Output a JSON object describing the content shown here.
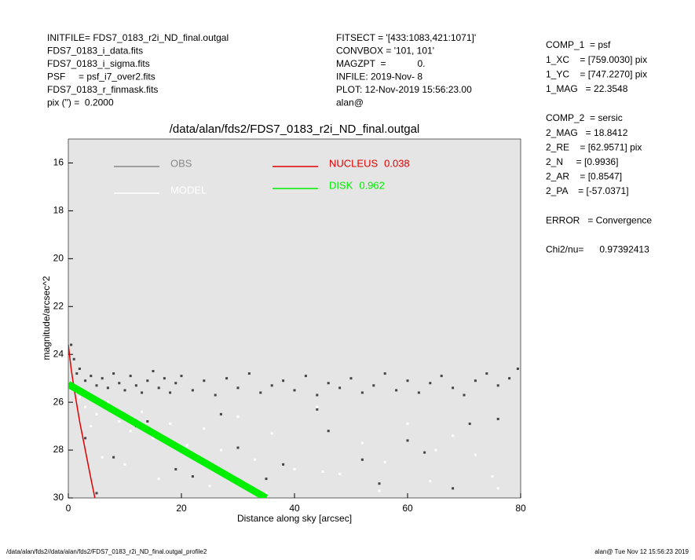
{
  "info_left": [
    "INITFILE= FDS7_0183_r2i_ND_final.outgal",
    "FDS7_0183_i_data.fits",
    "FDS7_0183_i_sigma.fits",
    "PSF     = psf_i7_over2.fits",
    "FDS7_0183_r_finmask.fits",
    "pix (\") =  0.2000"
  ],
  "info_mid": [
    "FITSECT = '[433:1083,421:1071]'",
    "CONVBOX = '101, 101'",
    "MAGZPT  =            0.",
    "INFILE: 2019-Nov- 8",
    "PLOT: 12-Nov-2019 15:56:23.00",
    "alan@"
  ],
  "info_right": [
    "COMP_1  = psf",
    "1_XC    = [759.0030] pix",
    "1_YC    = [747.2270] pix",
    "1_MAG   = 22.3548",
    "",
    "COMP_2  = sersic",
    "2_MAG   = 18.8412",
    "2_RE    = [62.9571] pix",
    "2_N     = [0.9936]",
    "2_AR    = [0.8547]",
    "2_PA    = [-57.0371]",
    "",
    "ERROR   = Convergence",
    "",
    "Chi2/nu=      0.97392413"
  ],
  "footer": {
    "left": "/data/alan/fds2//data/alan/fds2/FDS7_0183_r2i_ND_final.outgal_profile2",
    "right": "alan@  Tue Nov 12 15:56:23 2019"
  },
  "chart_data": {
    "type": "scatter",
    "title": "/data/alan/fds2/FDS7_0183_r2i_ND_final.outgal",
    "x_label": "Distance along sky [arcsec]",
    "y_label": "magnitude/arcsec^2",
    "xlim": [
      0,
      80
    ],
    "xticks": [
      0,
      20,
      40,
      60,
      80
    ],
    "ylim": [
      30,
      15
    ],
    "yticks": [
      16,
      18,
      20,
      22,
      24,
      26,
      28,
      30
    ],
    "background": "#e5e5e5",
    "series": [
      {
        "name": "OBS",
        "color": "#444444",
        "legend_color": "#888888",
        "mode": "markers",
        "x": [
          0.5,
          1,
          1.5,
          2,
          3,
          4,
          5,
          6,
          7,
          8,
          9,
          10,
          11,
          12,
          13,
          14,
          15,
          16,
          17,
          18,
          19,
          20,
          22,
          24,
          26,
          28,
          30,
          32,
          34,
          36,
          38,
          40,
          42,
          44,
          46,
          48,
          50,
          52,
          54,
          56,
          58,
          60,
          62,
          64,
          66,
          68,
          70,
          72,
          74,
          76,
          78,
          79.5,
          3,
          8,
          14,
          22,
          30,
          38,
          46,
          55,
          63,
          71,
          5,
          12,
          19,
          27,
          35,
          44,
          52,
          60,
          68,
          76
        ],
        "values": [
          23.6,
          24.2,
          24.8,
          24.6,
          25.1,
          24.9,
          25.3,
          25.0,
          25.4,
          24.8,
          25.2,
          25.5,
          24.9,
          25.3,
          25.6,
          25.1,
          24.7,
          25.4,
          25.0,
          25.6,
          25.2,
          24.9,
          25.5,
          25.1,
          25.7,
          25.0,
          25.4,
          24.8,
          25.6,
          25.3,
          25.1,
          25.5,
          24.9,
          25.7,
          25.2,
          25.4,
          25.0,
          25.6,
          25.3,
          24.8,
          25.5,
          25.1,
          25.6,
          25.2,
          24.9,
          25.4,
          25.7,
          25.1,
          24.8,
          25.3,
          25.0,
          24.6,
          27.5,
          28.3,
          26.8,
          29.1,
          27.9,
          28.6,
          27.2,
          29.4,
          28.1,
          26.9,
          29.8,
          27.0,
          28.8,
          26.5,
          29.2,
          26.3,
          28.4,
          27.6,
          29.6,
          26.7
        ]
      },
      {
        "name": "MODEL",
        "color": "#ffffff",
        "legend_color": "#ffffff",
        "mode": "markers",
        "x": [
          1,
          2,
          3,
          5,
          7,
          9,
          11,
          13,
          15,
          18,
          21,
          24,
          27,
          30,
          33,
          36,
          40,
          44,
          48,
          52,
          56,
          60,
          64,
          68,
          72,
          76,
          4,
          10,
          16,
          25,
          35,
          45,
          55,
          65,
          75,
          6
        ],
        "values": [
          25.5,
          25.8,
          26.2,
          26.5,
          26.0,
          26.8,
          27.2,
          26.4,
          27.5,
          26.9,
          27.8,
          27.1,
          28.0,
          26.6,
          28.4,
          27.3,
          28.8,
          26.2,
          29.0,
          27.7,
          28.5,
          26.9,
          29.3,
          27.4,
          28.2,
          29.6,
          27.0,
          28.6,
          29.2,
          29.5,
          29.8,
          28.9,
          29.7,
          28.0,
          29.1,
          28.3
        ]
      },
      {
        "name": "NUCLEUS",
        "fraction": "0.038",
        "color": "#e00000",
        "legend_color": "#e00000",
        "mode": "line",
        "x": [
          0,
          0.5,
          1,
          1.5,
          2,
          3,
          4,
          4.7
        ],
        "values": [
          23.6,
          24.6,
          25.4,
          26.1,
          26.8,
          28.0,
          29.2,
          30
        ]
      },
      {
        "name": "DISK",
        "fraction": "0.962",
        "color": "#00ee00",
        "legend_color": "#00ee00",
        "mode": "band",
        "x": [
          0,
          35
        ],
        "values": [
          25.25,
          30
        ]
      }
    ]
  }
}
